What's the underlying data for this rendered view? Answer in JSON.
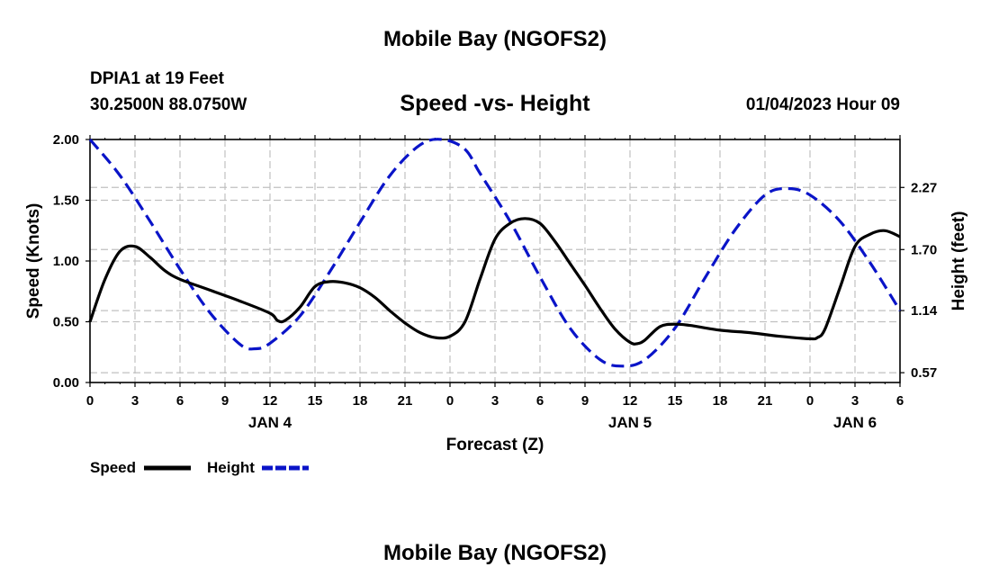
{
  "page": {
    "title": "Mobile Bay (NGOFS2)",
    "footer_title": "Mobile Bay (NGOFS2)",
    "station": "DPIA1 at 19 Feet",
    "coords": "30.2500N  88.0750W",
    "datetime": "01/04/2023 Hour 09"
  },
  "chart_data": {
    "type": "line",
    "title": "Speed -vs- Height",
    "xlabel": "Forecast (Z)",
    "ylabel": "Speed (Knots)",
    "ylabel_right": "Height (feet)",
    "x_unit": "hours from 00Z Jan 4",
    "xlim": [
      0,
      54
    ],
    "ylim": [
      0,
      2.0
    ],
    "ylim_right": [
      0.48,
      2.71
    ],
    "x_ticks": [
      0,
      3,
      6,
      9,
      12,
      15,
      18,
      21,
      24,
      27,
      30,
      33,
      36,
      39,
      42,
      45,
      48,
      51,
      54
    ],
    "x_tick_labels": [
      "0",
      "3",
      "6",
      "9",
      "12",
      "15",
      "18",
      "21",
      "0",
      "3",
      "6",
      "9",
      "12",
      "15",
      "18",
      "21",
      "0",
      "3",
      "6"
    ],
    "day_labels": [
      {
        "x": 12,
        "label": "JAN 4"
      },
      {
        "x": 36,
        "label": "JAN 5"
      },
      {
        "x": 51,
        "label": "JAN 6"
      }
    ],
    "y_ticks": [
      0.0,
      0.5,
      1.0,
      1.5,
      2.0
    ],
    "y_tick_labels": [
      "0.00",
      "0.50",
      "1.00",
      "1.50",
      "2.00"
    ],
    "y_ticks_right": [
      0.57,
      1.14,
      1.7,
      2.27
    ],
    "y_tick_labels_right": [
      "0.57",
      "1.14",
      "1.70",
      "2.27"
    ],
    "grid": true,
    "legend_position": "bottom-left",
    "series": [
      {
        "name": "Speed",
        "axis": "left",
        "color": "#000000",
        "style": "solid",
        "x": [
          0,
          1,
          2,
          3,
          4,
          5,
          6,
          8,
          10,
          12,
          12.5,
          13,
          14,
          15,
          16,
          17,
          18,
          19,
          20,
          21,
          22,
          23,
          24,
          25,
          26,
          27,
          28,
          29,
          30,
          31,
          32,
          33,
          34,
          35,
          36,
          36.5,
          37,
          38,
          39,
          40,
          42,
          44,
          46,
          48,
          48.5,
          49,
          50,
          51,
          52,
          53,
          54
        ],
        "y": [
          0.5,
          0.85,
          1.08,
          1.12,
          1.03,
          0.92,
          0.85,
          0.76,
          0.67,
          0.57,
          0.51,
          0.51,
          0.62,
          0.79,
          0.83,
          0.82,
          0.78,
          0.7,
          0.59,
          0.49,
          0.41,
          0.37,
          0.38,
          0.5,
          0.85,
          1.18,
          1.31,
          1.35,
          1.31,
          1.16,
          0.98,
          0.8,
          0.61,
          0.44,
          0.33,
          0.32,
          0.35,
          0.46,
          0.48,
          0.47,
          0.43,
          0.41,
          0.38,
          0.36,
          0.37,
          0.44,
          0.78,
          1.12,
          1.22,
          1.25,
          1.2
        ]
      },
      {
        "name": "Height",
        "axis": "right",
        "color": "#0a14c8",
        "style": "dashed",
        "x": [
          0,
          2,
          4,
          6,
          8,
          10,
          11,
          12,
          14,
          16,
          18,
          20,
          22,
          23.5,
          25,
          26,
          28,
          30,
          32,
          34,
          35.5,
          37,
          39,
          41,
          43,
          45,
          46.5,
          48,
          50,
          52,
          54
        ],
        "y": [
          2.71,
          2.38,
          1.96,
          1.52,
          1.12,
          0.83,
          0.79,
          0.84,
          1.09,
          1.5,
          1.95,
          2.38,
          2.66,
          2.71,
          2.62,
          2.4,
          1.96,
          1.45,
          0.98,
          0.69,
          0.63,
          0.69,
          0.98,
          1.44,
          1.88,
          2.2,
          2.26,
          2.2,
          1.96,
          1.58,
          1.14
        ]
      }
    ]
  },
  "legend": {
    "speed_label": "Speed",
    "height_label": "Height"
  }
}
